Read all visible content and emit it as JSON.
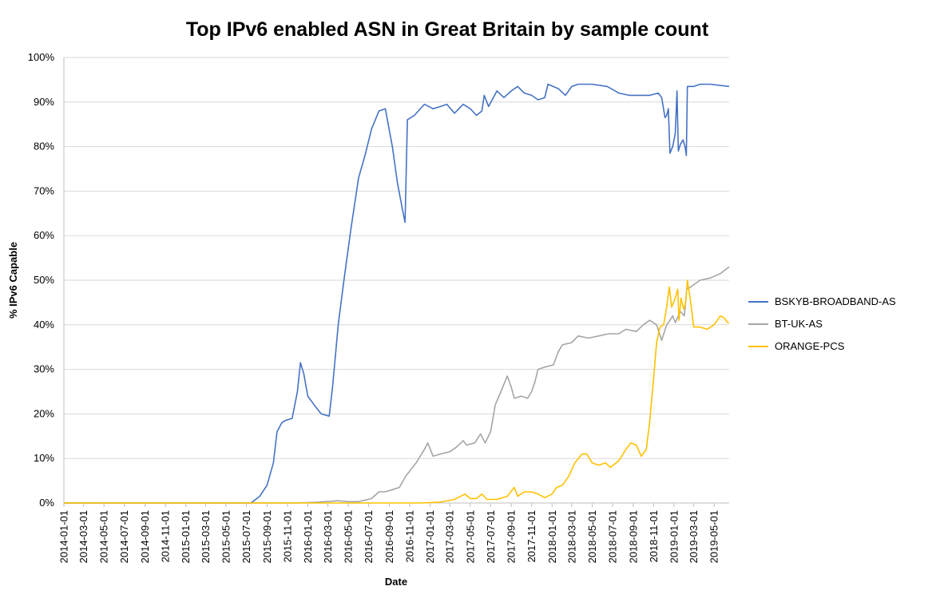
{
  "chart_data": {
    "type": "line",
    "title": "Top IPv6 enabled ASN in Great Britain by sample count",
    "xlabel": "Date",
    "ylabel": "% IPv6 Capable",
    "ylim": [
      0,
      100
    ],
    "yticks": [
      "0%",
      "10%",
      "20%",
      "30%",
      "40%",
      "50%",
      "60%",
      "70%",
      "80%",
      "90%",
      "100%"
    ],
    "xlim": [
      "2014-01-01",
      "2019-06-15"
    ],
    "xticks": [
      "2014-01-01",
      "2014-03-01",
      "2014-05-01",
      "2014-07-01",
      "2014-09-01",
      "2014-11-01",
      "2015-01-01",
      "2015-03-01",
      "2015-05-01",
      "2015-07-01",
      "2015-09-01",
      "2015-11-01",
      "2016-01-01",
      "2016-03-01",
      "2016-05-01",
      "2016-07-01",
      "2016-09-01",
      "2016-11-01",
      "2017-01-01",
      "2017-03-01",
      "2017-05-01",
      "2017-07-01",
      "2017-09-01",
      "2017-11-01",
      "2018-01-01",
      "2018-03-01",
      "2018-05-01",
      "2018-07-01",
      "2018-09-01",
      "2018-11-01",
      "2019-01-01",
      "2019-03-01",
      "2019-05-01"
    ],
    "grid": true,
    "legend_position": "right",
    "series": [
      {
        "name": "BSKYB-BROADBAND-AS",
        "color": "#4472c4",
        "points": [
          [
            "2014-01-01",
            0
          ],
          [
            "2015-07-15",
            0
          ],
          [
            "2015-08-10",
            1.5
          ],
          [
            "2015-09-01",
            4
          ],
          [
            "2015-09-20",
            9
          ],
          [
            "2015-10-01",
            16
          ],
          [
            "2015-10-15",
            18
          ],
          [
            "2015-10-25",
            18.5
          ],
          [
            "2015-11-15",
            19
          ],
          [
            "2015-12-01",
            25
          ],
          [
            "2015-12-10",
            31.5
          ],
          [
            "2015-12-20",
            29
          ],
          [
            "2016-01-01",
            24
          ],
          [
            "2016-01-20",
            22
          ],
          [
            "2016-02-10",
            20
          ],
          [
            "2016-03-05",
            19.5
          ],
          [
            "2016-03-15",
            26
          ],
          [
            "2016-04-01",
            40
          ],
          [
            "2016-04-20",
            51
          ],
          [
            "2016-05-10",
            62
          ],
          [
            "2016-06-01",
            73
          ],
          [
            "2016-06-20",
            78
          ],
          [
            "2016-07-10",
            84
          ],
          [
            "2016-08-01",
            88
          ],
          [
            "2016-08-20",
            88.5
          ],
          [
            "2016-09-10",
            80
          ],
          [
            "2016-09-25",
            72
          ],
          [
            "2016-10-10",
            66
          ],
          [
            "2016-10-18",
            63
          ],
          [
            "2016-10-25",
            86
          ],
          [
            "2016-11-15",
            87
          ],
          [
            "2016-12-15",
            89.5
          ],
          [
            "2017-01-10",
            88.5
          ],
          [
            "2017-02-01",
            89
          ],
          [
            "2017-02-20",
            89.5
          ],
          [
            "2017-03-15",
            87.5
          ],
          [
            "2017-04-10",
            89.5
          ],
          [
            "2017-05-01",
            88.5
          ],
          [
            "2017-05-20",
            87
          ],
          [
            "2017-06-05",
            88
          ],
          [
            "2017-06-12",
            91.5
          ],
          [
            "2017-06-25",
            89
          ],
          [
            "2017-07-20",
            92.5
          ],
          [
            "2017-08-10",
            91
          ],
          [
            "2017-09-01",
            92.5
          ],
          [
            "2017-09-20",
            93.5
          ],
          [
            "2017-10-10",
            92
          ],
          [
            "2017-11-01",
            91.5
          ],
          [
            "2017-11-20",
            90.5
          ],
          [
            "2017-12-10",
            91
          ],
          [
            "2017-12-20",
            94
          ],
          [
            "2018-01-20",
            93
          ],
          [
            "2018-02-10",
            91.5
          ],
          [
            "2018-03-01",
            93.5
          ],
          [
            "2018-03-20",
            94
          ],
          [
            "2018-05-01",
            94
          ],
          [
            "2018-06-15",
            93.5
          ],
          [
            "2018-07-20",
            92
          ],
          [
            "2018-08-20",
            91.5
          ],
          [
            "2018-09-20",
            91.5
          ],
          [
            "2018-10-20",
            91.5
          ],
          [
            "2018-11-15",
            92
          ],
          [
            "2018-11-25",
            91
          ],
          [
            "2018-12-05",
            86.5
          ],
          [
            "2018-12-10",
            87
          ],
          [
            "2018-12-15",
            88.5
          ],
          [
            "2018-12-20",
            78.5
          ],
          [
            "2018-12-28",
            80
          ],
          [
            "2019-01-05",
            83
          ],
          [
            "2019-01-10",
            92.5
          ],
          [
            "2019-01-14",
            79
          ],
          [
            "2019-01-20",
            80.5
          ],
          [
            "2019-01-28",
            81.5
          ],
          [
            "2019-02-03",
            80
          ],
          [
            "2019-02-07",
            78
          ],
          [
            "2019-02-10",
            93.5
          ],
          [
            "2019-03-01",
            93.5
          ],
          [
            "2019-03-20",
            94
          ],
          [
            "2019-04-20",
            94
          ],
          [
            "2019-06-15",
            93.5
          ]
        ]
      },
      {
        "name": "BT-UK-AS",
        "color": "#a5a5a5",
        "points": [
          [
            "2014-01-01",
            0
          ],
          [
            "2015-12-01",
            0
          ],
          [
            "2016-02-01",
            0.2
          ],
          [
            "2016-04-01",
            0.5
          ],
          [
            "2016-05-01",
            0.3
          ],
          [
            "2016-06-01",
            0.3
          ],
          [
            "2016-07-10",
            1
          ],
          [
            "2016-08-01",
            2.5
          ],
          [
            "2016-08-20",
            2.5
          ],
          [
            "2016-09-10",
            3
          ],
          [
            "2016-10-01",
            3.5
          ],
          [
            "2016-10-20",
            6
          ],
          [
            "2016-11-20",
            9
          ],
          [
            "2016-12-15",
            12
          ],
          [
            "2016-12-25",
            13.5
          ],
          [
            "2017-01-10",
            10.5
          ],
          [
            "2017-02-01",
            11
          ],
          [
            "2017-03-01",
            11.5
          ],
          [
            "2017-03-20",
            12.5
          ],
          [
            "2017-04-10",
            14
          ],
          [
            "2017-04-20",
            13
          ],
          [
            "2017-05-15",
            13.5
          ],
          [
            "2017-06-01",
            15.5
          ],
          [
            "2017-06-15",
            13.5
          ],
          [
            "2017-07-01",
            16
          ],
          [
            "2017-07-15",
            22
          ],
          [
            "2017-08-01",
            25
          ],
          [
            "2017-08-20",
            28.5
          ],
          [
            "2017-09-01",
            26
          ],
          [
            "2017-09-10",
            23.5
          ],
          [
            "2017-10-01",
            24
          ],
          [
            "2017-10-20",
            23.5
          ],
          [
            "2017-11-01",
            25
          ],
          [
            "2017-11-10",
            27
          ],
          [
            "2017-11-20",
            30
          ],
          [
            "2017-12-10",
            30.5
          ],
          [
            "2018-01-05",
            31
          ],
          [
            "2018-01-20",
            34
          ],
          [
            "2018-02-01",
            35.5
          ],
          [
            "2018-03-01",
            36
          ],
          [
            "2018-03-20",
            37.5
          ],
          [
            "2018-04-20",
            37
          ],
          [
            "2018-05-20",
            37.5
          ],
          [
            "2018-06-20",
            38
          ],
          [
            "2018-07-20",
            38
          ],
          [
            "2018-08-10",
            39
          ],
          [
            "2018-09-10",
            38.5
          ],
          [
            "2018-10-01",
            40
          ],
          [
            "2018-10-20",
            41
          ],
          [
            "2018-11-10",
            40
          ],
          [
            "2018-11-25",
            36.5
          ],
          [
            "2018-12-10",
            40
          ],
          [
            "2018-12-20",
            41
          ],
          [
            "2018-12-28",
            42
          ],
          [
            "2019-01-05",
            40.5
          ],
          [
            "2019-01-20",
            43
          ],
          [
            "2019-02-01",
            42
          ],
          [
            "2019-02-08",
            48
          ],
          [
            "2019-02-20",
            48.5
          ],
          [
            "2019-03-20",
            50
          ],
          [
            "2019-04-20",
            50.5
          ],
          [
            "2019-05-20",
            51.5
          ],
          [
            "2019-06-15",
            53
          ]
        ]
      },
      {
        "name": "ORANGE-PCS",
        "color": "#ffc000",
        "points": [
          [
            "2014-01-01",
            0
          ],
          [
            "2016-12-01",
            0
          ],
          [
            "2017-02-01",
            0.2
          ],
          [
            "2017-03-15",
            0.8
          ],
          [
            "2017-04-15",
            2
          ],
          [
            "2017-05-01",
            1
          ],
          [
            "2017-05-20",
            1
          ],
          [
            "2017-06-05",
            2
          ],
          [
            "2017-06-20",
            0.8
          ],
          [
            "2017-07-20",
            0.8
          ],
          [
            "2017-08-20",
            1.5
          ],
          [
            "2017-09-10",
            3.5
          ],
          [
            "2017-09-20",
            1.5
          ],
          [
            "2017-10-10",
            2.5
          ],
          [
            "2017-11-01",
            2.5
          ],
          [
            "2017-11-20",
            2
          ],
          [
            "2017-12-10",
            1.2
          ],
          [
            "2018-01-01",
            2
          ],
          [
            "2018-01-15",
            3.5
          ],
          [
            "2018-02-01",
            4
          ],
          [
            "2018-02-20",
            6
          ],
          [
            "2018-03-10",
            9
          ],
          [
            "2018-04-01",
            11
          ],
          [
            "2018-04-15",
            11
          ],
          [
            "2018-05-01",
            9
          ],
          [
            "2018-05-20",
            8.5
          ],
          [
            "2018-06-10",
            9
          ],
          [
            "2018-06-25",
            8
          ],
          [
            "2018-07-20",
            9.5
          ],
          [
            "2018-08-10",
            12
          ],
          [
            "2018-08-25",
            13.5
          ],
          [
            "2018-09-10",
            13
          ],
          [
            "2018-09-25",
            10.5
          ],
          [
            "2018-10-10",
            12
          ],
          [
            "2018-10-20",
            18
          ],
          [
            "2018-11-01",
            28
          ],
          [
            "2018-11-10",
            36
          ],
          [
            "2018-11-20",
            39.5
          ],
          [
            "2018-12-01",
            40
          ],
          [
            "2018-12-10",
            44
          ],
          [
            "2018-12-18",
            48.5
          ],
          [
            "2018-12-25",
            44
          ],
          [
            "2019-01-05",
            46
          ],
          [
            "2019-01-12",
            48
          ],
          [
            "2019-01-16",
            41
          ],
          [
            "2019-01-22",
            46
          ],
          [
            "2019-01-30",
            43.5
          ],
          [
            "2019-02-05",
            45
          ],
          [
            "2019-02-10",
            50
          ],
          [
            "2019-02-20",
            45
          ],
          [
            "2019-03-01",
            39.5
          ],
          [
            "2019-03-20",
            39.5
          ],
          [
            "2019-04-10",
            39
          ],
          [
            "2019-05-01",
            40
          ],
          [
            "2019-05-20",
            42
          ],
          [
            "2019-06-01",
            41.5
          ],
          [
            "2019-06-10",
            40.5
          ],
          [
            "2019-06-15",
            40.5
          ]
        ]
      }
    ]
  }
}
